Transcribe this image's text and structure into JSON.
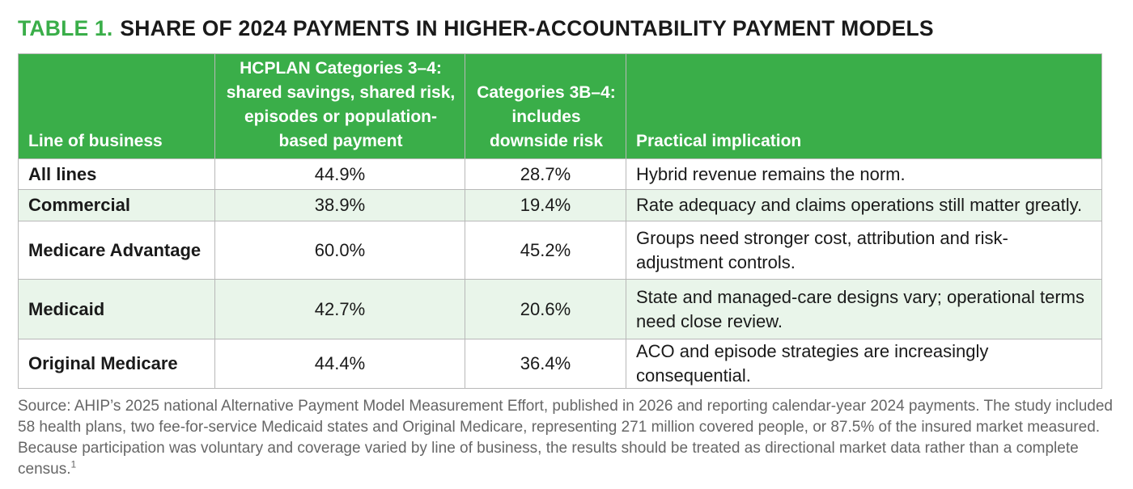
{
  "title": {
    "label": "TABLE 1.",
    "text": "SHARE OF 2024 PAYMENTS IN HIGHER-ACCOUNTABILITY PAYMENT MODELS"
  },
  "colors": {
    "header_green": "#3aae49",
    "row_tint": "#e9f5ea",
    "border": "#b8b8b8",
    "source_text": "#666666"
  },
  "table": {
    "headers": [
      "Line of business",
      "HCPLAN Categories 3–4: shared savings, shared risk, episodes or population-based payment",
      "Categories 3B–4: includes downside risk",
      "Practical implication"
    ],
    "rows": [
      {
        "line": "All lines",
        "cat34": "44.9%",
        "cat3b4": "28.7%",
        "implication": "Hybrid revenue remains the norm."
      },
      {
        "line": "Commercial",
        "cat34": "38.9%",
        "cat3b4": "19.4%",
        "implication": "Rate adequacy and claims operations still matter greatly."
      },
      {
        "line": "Medicare Advantage",
        "cat34": "60.0%",
        "cat3b4": "45.2%",
        "implication": "Groups need stronger cost, attribution and risk-adjustment controls."
      },
      {
        "line": "Medicaid",
        "cat34": "42.7%",
        "cat3b4": "20.6%",
        "implication": "State and managed-care designs vary; operational terms need close review."
      },
      {
        "line": "Original Medicare",
        "cat34": "44.4%",
        "cat3b4": "36.4%",
        "implication": "ACO and episode strategies are increasingly consequential."
      }
    ]
  },
  "source": {
    "text": "Source: AHIP’s 2025 national Alternative Payment Model Measurement Effort, published in 2026 and reporting calendar-year 2024 payments. The study included 58 health plans, two fee-for-service Medicaid states and Original Medicare, representing 271 million covered people, or 87.5% of the insured market measured. Because participation was voluntary and coverage varied by line of business, the results should be treated as directional market data rather than a complete census.",
    "footnote": "1"
  }
}
